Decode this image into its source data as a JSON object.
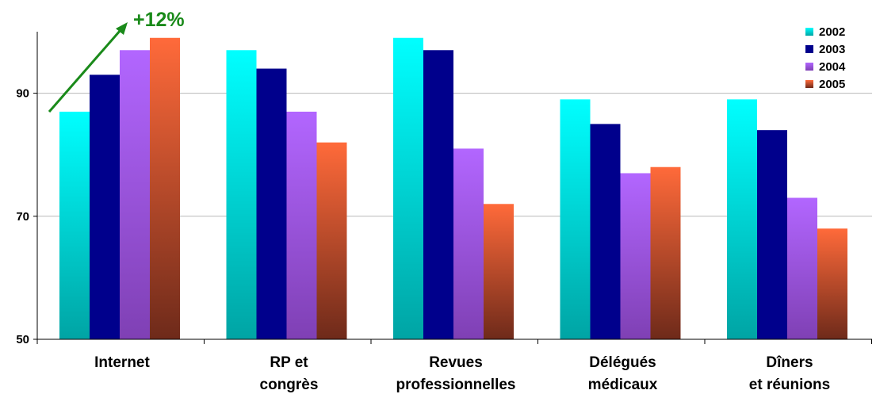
{
  "chart_data": {
    "type": "bar",
    "categories": [
      [
        "Internet"
      ],
      [
        "RP et",
        "congrès"
      ],
      [
        "Revues",
        "professionnelles"
      ],
      [
        "Délégués",
        "médicaux"
      ],
      [
        "Dîners",
        "et réunions"
      ]
    ],
    "series": [
      {
        "name": "2002",
        "values": [
          87,
          97,
          99,
          89,
          89
        ],
        "color_top": "#00ffff",
        "color_bottom": "#00a4a4"
      },
      {
        "name": "2003",
        "values": [
          93,
          94,
          97,
          85,
          84
        ],
        "color_top": "#00008c",
        "color_bottom": "#00008c"
      },
      {
        "name": "2004",
        "values": [
          97,
          87,
          81,
          77,
          73
        ],
        "color_top": "#b266ff",
        "color_bottom": "#7f40b4"
      },
      {
        "name": "2005",
        "values": [
          99,
          82,
          72,
          78,
          68
        ],
        "color_top": "#ff6a3a",
        "color_bottom": "#6e2a1a"
      }
    ],
    "y_ticks": [
      "50",
      "70",
      "90"
    ],
    "ylim": [
      50,
      100
    ],
    "grid": true,
    "legend_position": "top-right",
    "annotation": {
      "text": "+12%",
      "color": "#1a8a1a"
    }
  }
}
